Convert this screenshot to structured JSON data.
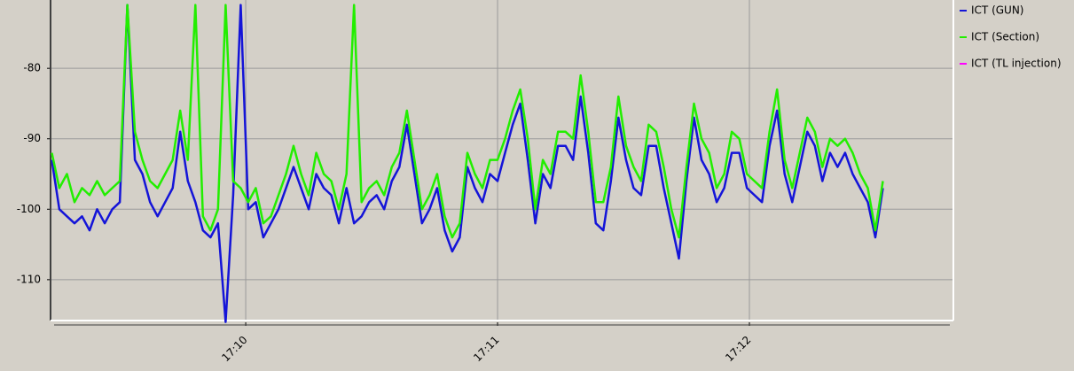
{
  "chart_data": {
    "type": "line",
    "x": [
      1029.23,
      1029.26,
      1029.29,
      1029.32,
      1029.35,
      1029.38,
      1029.41,
      1029.44,
      1029.47,
      1029.5,
      1029.53,
      1029.56,
      1029.59,
      1029.62,
      1029.65,
      1029.68,
      1029.71,
      1029.74,
      1029.77,
      1029.8,
      1029.83,
      1029.86,
      1029.89,
      1029.92,
      1029.95,
      1029.98,
      1030.01,
      1030.04,
      1030.07,
      1030.1,
      1030.13,
      1030.16,
      1030.19,
      1030.22,
      1030.25,
      1030.28,
      1030.31,
      1030.34,
      1030.37,
      1030.4,
      1030.43,
      1030.46,
      1030.49,
      1030.52,
      1030.55,
      1030.58,
      1030.61,
      1030.64,
      1030.67,
      1030.7,
      1030.73,
      1030.76,
      1030.79,
      1030.82,
      1030.85,
      1030.88,
      1030.91,
      1030.94,
      1030.97,
      1031.0,
      1031.03,
      1031.06,
      1031.09,
      1031.12,
      1031.15,
      1031.18,
      1031.21,
      1031.24,
      1031.27,
      1031.3,
      1031.33,
      1031.36,
      1031.39,
      1031.42,
      1031.45,
      1031.48,
      1031.51,
      1031.54,
      1031.57,
      1031.6,
      1031.63,
      1031.66,
      1031.69,
      1031.72,
      1031.75,
      1031.78,
      1031.81,
      1031.84,
      1031.87,
      1031.9,
      1031.93,
      1031.96,
      1031.99,
      1032.02,
      1032.05,
      1032.08,
      1032.11,
      1032.14,
      1032.17,
      1032.2,
      1032.23,
      1032.26,
      1032.29,
      1032.32,
      1032.35,
      1032.38,
      1032.41,
      1032.44,
      1032.47,
      1032.5,
      1032.53
    ],
    "series": [
      {
        "name": "ICT (GUN)",
        "color": "#1414d8",
        "values": [
          -93,
          -100,
          -101,
          -102,
          -101,
          -103,
          -100,
          -102,
          -100,
          -99,
          -71,
          -93,
          -95,
          -99,
          -101,
          -99,
          -97,
          -89,
          -96,
          -99,
          -103,
          -104,
          -102,
          -116,
          -98,
          -71,
          -100,
          -99,
          -104,
          -102,
          -100,
          -97,
          -94,
          -97,
          -100,
          -95,
          -97,
          -98,
          -102,
          -97,
          -102,
          -101,
          -99,
          -98,
          -100,
          -96,
          -94,
          -88,
          -95,
          -102,
          -100,
          -97,
          -103,
          -106,
          -104,
          -94,
          -97,
          -99,
          -95,
          -96,
          -92,
          -88,
          -85,
          -93,
          -102,
          -95,
          -97,
          -91,
          -91,
          -93,
          -84,
          -92,
          -102,
          -103,
          -96,
          -87,
          -93,
          -97,
          -98,
          -91,
          -91,
          -97,
          -102,
          -107,
          -96,
          -87,
          -93,
          -95,
          -99,
          -97,
          -92,
          -92,
          -97,
          -98,
          -99,
          -91,
          -86,
          -95,
          -99,
          -94,
          -89,
          -91,
          -96,
          -92,
          -94,
          -92,
          -95,
          -97,
          -99,
          -104,
          -97
        ]
      },
      {
        "name": "ICT (Section)",
        "color": "#22ee00",
        "values": [
          -92,
          -97,
          -95,
          -99,
          -97,
          -98,
          -96,
          -98,
          -97,
          -96,
          -71,
          -89,
          -93,
          -96,
          -97,
          -95,
          -93,
          -86,
          -93,
          -71,
          -101,
          -103,
          -100,
          -71,
          -96,
          -97,
          -99,
          -97,
          -102,
          -101,
          -98,
          -95,
          -91,
          -95,
          -98,
          -92,
          -95,
          -96,
          -100,
          -95,
          -71,
          -99,
          -97,
          -96,
          -98,
          -94,
          -92,
          -86,
          -93,
          -100,
          -98,
          -95,
          -101,
          -104,
          -102,
          -92,
          -95,
          -97,
          -93,
          -93,
          -90,
          -86,
          -83,
          -90,
          -100,
          -93,
          -95,
          -89,
          -89,
          -90,
          -81,
          -89,
          -99,
          -99,
          -94,
          -84,
          -91,
          -94,
          -96,
          -88,
          -89,
          -94,
          -100,
          -104,
          -94,
          -85,
          -90,
          -92,
          -97,
          -95,
          -89,
          -90,
          -95,
          -96,
          -97,
          -89,
          -83,
          -93,
          -97,
          -92,
          -87,
          -89,
          -94,
          -90,
          -91,
          -90,
          -92,
          -95,
          -97,
          -103,
          -96
        ]
      },
      {
        "name": "ICT (TL injection)",
        "color": "#ff00ff",
        "values": [
          null,
          null,
          null,
          null,
          null,
          null,
          null,
          null,
          null,
          null,
          null,
          null,
          null,
          null,
          null,
          null,
          null,
          null,
          null,
          null,
          null,
          null,
          null,
          null,
          null,
          null,
          null,
          null,
          null,
          null,
          null,
          null,
          null,
          null,
          null,
          null,
          null,
          null,
          null,
          null,
          null,
          null,
          null,
          null,
          null,
          null,
          null,
          null,
          null,
          null,
          null,
          null,
          null,
          null,
          null,
          null,
          null,
          null,
          null,
          null,
          null,
          null,
          null,
          null,
          null,
          null,
          null,
          null,
          null,
          null,
          null,
          null,
          null,
          null,
          null,
          null,
          null,
          null,
          null,
          null,
          null,
          null,
          null,
          null,
          null,
          null,
          null,
          null,
          null,
          null,
          null,
          null,
          null,
          null,
          null,
          null,
          null,
          null,
          null,
          null,
          null,
          null,
          null,
          null,
          null,
          null,
          null,
          null,
          null,
          null,
          null
        ]
      }
    ],
    "xlim": [
      1029.225,
      1032.81
    ],
    "xticks": [
      {
        "value": 1030,
        "label": "17:10"
      },
      {
        "value": 1031,
        "label": "17:11"
      },
      {
        "value": 1032,
        "label": "17:12"
      }
    ],
    "ylim": [
      -115.8,
      -70.3
    ],
    "yticks": [
      -110,
      -100,
      -90,
      -80
    ],
    "grid": true
  }
}
